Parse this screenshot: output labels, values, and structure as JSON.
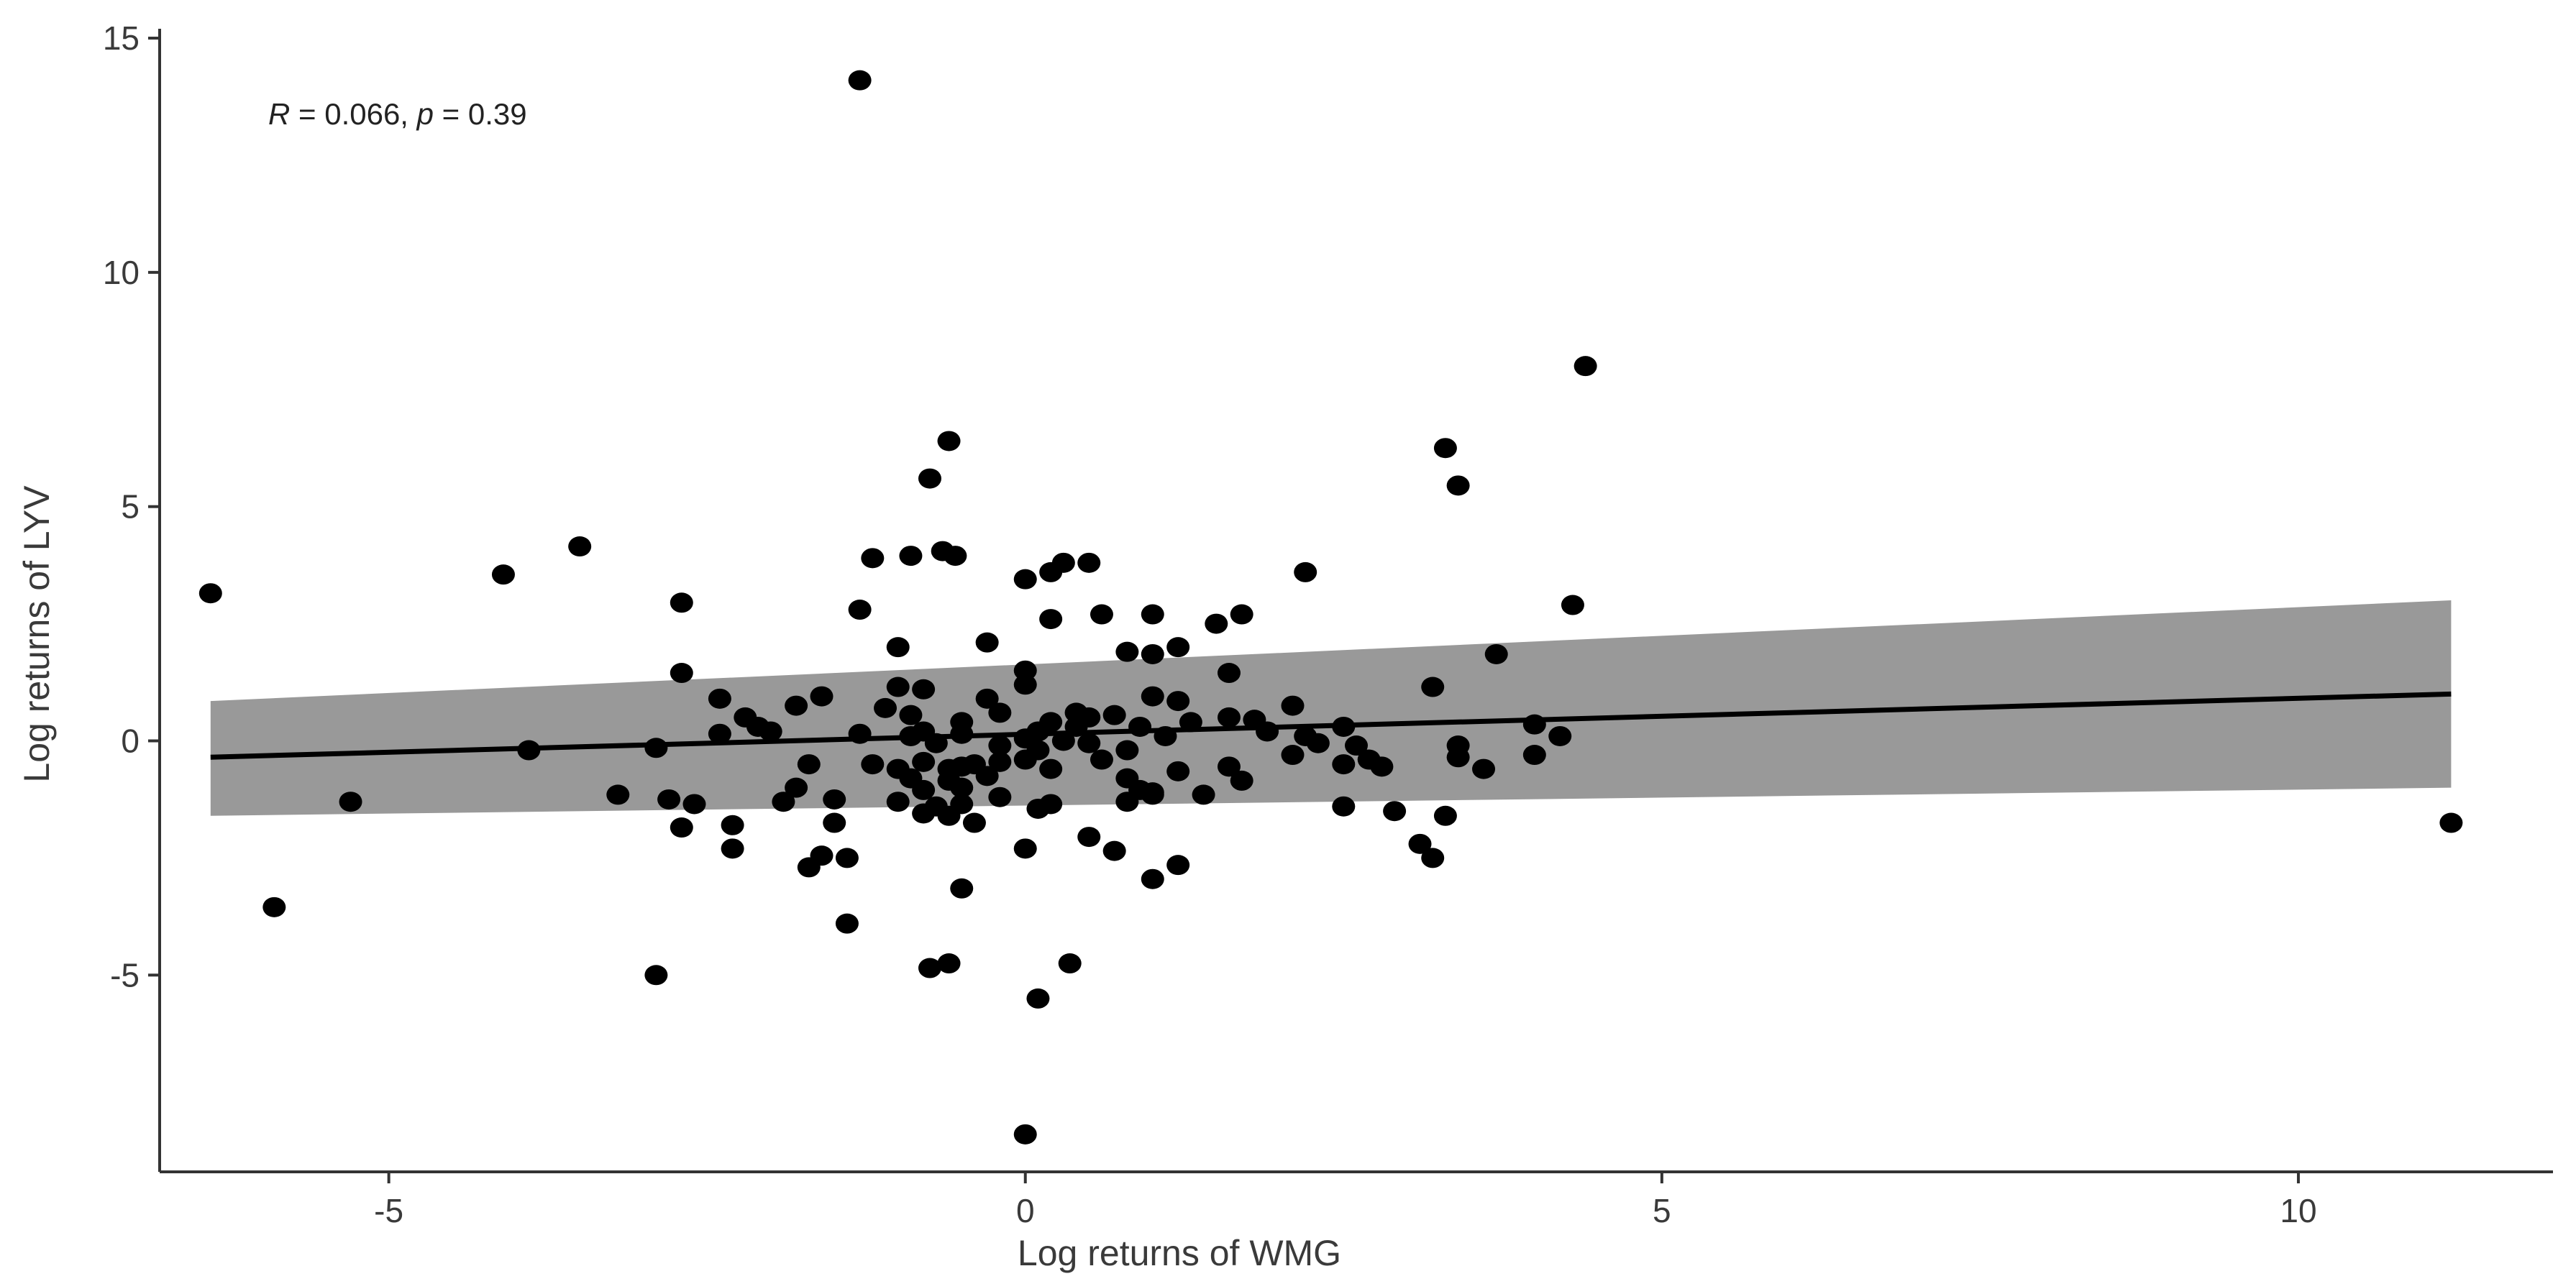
{
  "chart_data": {
    "type": "scatter",
    "title": "",
    "xlabel": "Log returns of WMG",
    "ylabel": "Log returns of LYV",
    "xlim": [
      -6.8,
      12.0
    ],
    "ylim": [
      -9.2,
      15.2
    ],
    "xticks": [
      -5,
      0,
      5,
      10
    ],
    "yticks": [
      -5,
      0,
      5,
      10,
      15
    ],
    "xtick_labels": [
      "-5",
      "0",
      "5",
      "10"
    ],
    "ytick_labels": [
      "-5",
      "0",
      "5",
      "10",
      "15"
    ],
    "grid": false,
    "annotation": {
      "r_label": "R",
      "r_text": " = 0.066, ",
      "p_label": "p",
      "p_text": " = 0.39"
    },
    "regression": {
      "x": [
        -6.4,
        11.2
      ],
      "y": [
        -0.35,
        1.0
      ],
      "ci_lower": [
        -1.6,
        -1.0
      ],
      "ci_upper": [
        0.85,
        3.0
      ]
    },
    "colors": {
      "points": "#000000",
      "line": "#000000",
      "band": "#999999",
      "axis": "#333333"
    },
    "points": [
      [
        -1.3,
        14.1
      ],
      [
        4.4,
        8.0
      ],
      [
        -0.6,
        6.4
      ],
      [
        3.3,
        6.25
      ],
      [
        -0.75,
        5.6
      ],
      [
        3.4,
        5.45
      ],
      [
        -3.5,
        4.15
      ],
      [
        -0.65,
        4.05
      ],
      [
        -0.55,
        3.95
      ],
      [
        -0.9,
        3.95
      ],
      [
        -1.2,
        3.9
      ],
      [
        0.3,
        3.8
      ],
      [
        0.5,
        3.8
      ],
      [
        0.2,
        3.6
      ],
      [
        -4.1,
        3.55
      ],
      [
        2.2,
        3.6
      ],
      [
        0.0,
        3.45
      ],
      [
        -6.4,
        3.15
      ],
      [
        -2.7,
        2.95
      ],
      [
        4.3,
        2.9
      ],
      [
        -1.3,
        2.8
      ],
      [
        0.6,
        2.7
      ],
      [
        1.0,
        2.7
      ],
      [
        1.7,
        2.7
      ],
      [
        0.2,
        2.6
      ],
      [
        1.5,
        2.5
      ],
      [
        -1.0,
        2.0
      ],
      [
        -0.3,
        2.1
      ],
      [
        1.2,
        2.0
      ],
      [
        0.8,
        1.9
      ],
      [
        1.0,
        1.85
      ],
      [
        3.7,
        1.85
      ],
      [
        -2.7,
        1.45
      ],
      [
        0.0,
        1.5
      ],
      [
        1.6,
        1.45
      ],
      [
        -1.0,
        1.15
      ],
      [
        -0.8,
        1.1
      ],
      [
        0.0,
        1.2
      ],
      [
        3.2,
        1.15
      ],
      [
        -1.6,
        0.95
      ],
      [
        -2.4,
        0.9
      ],
      [
        1.0,
        0.95
      ],
      [
        1.2,
        0.85
      ],
      [
        2.1,
        0.75
      ],
      [
        -1.8,
        0.75
      ],
      [
        -1.1,
        0.7
      ],
      [
        -0.9,
        0.55
      ],
      [
        -0.3,
        0.9
      ],
      [
        -0.2,
        0.6
      ],
      [
        0.4,
        0.6
      ],
      [
        0.5,
        0.5
      ],
      [
        0.7,
        0.55
      ],
      [
        -2.2,
        0.5
      ],
      [
        -0.5,
        0.4
      ],
      [
        0.2,
        0.4
      ],
      [
        1.6,
        0.5
      ],
      [
        1.8,
        0.45
      ],
      [
        2.5,
        0.3
      ],
      [
        4.0,
        0.35
      ],
      [
        -2.1,
        0.3
      ],
      [
        -2.0,
        0.2
      ],
      [
        -0.8,
        0.2
      ],
      [
        -0.5,
        0.15
      ],
      [
        0.1,
        0.2
      ],
      [
        0.4,
        0.3
      ],
      [
        0.9,
        0.3
      ],
      [
        1.3,
        0.4
      ],
      [
        1.9,
        0.2
      ],
      [
        2.2,
        0.1
      ],
      [
        4.2,
        0.1
      ],
      [
        -2.4,
        0.15
      ],
      [
        -1.3,
        0.15
      ],
      [
        -0.9,
        0.1
      ],
      [
        0.0,
        0.05
      ],
      [
        0.3,
        0.0
      ],
      [
        0.5,
        -0.05
      ],
      [
        1.1,
        0.1
      ],
      [
        2.3,
        -0.05
      ],
      [
        2.6,
        -0.1
      ],
      [
        3.4,
        -0.1
      ],
      [
        -3.9,
        -0.2
      ],
      [
        -2.9,
        -0.15
      ],
      [
        -0.7,
        -0.05
      ],
      [
        -0.2,
        -0.1
      ],
      [
        0.1,
        -0.2
      ],
      [
        0.8,
        -0.2
      ],
      [
        2.1,
        -0.3
      ],
      [
        2.7,
        -0.4
      ],
      [
        3.4,
        -0.35
      ],
      [
        4.0,
        -0.3
      ],
      [
        -1.7,
        -0.5
      ],
      [
        -1.2,
        -0.5
      ],
      [
        -1.0,
        -0.6
      ],
      [
        -0.8,
        -0.45
      ],
      [
        -0.6,
        -0.6
      ],
      [
        -0.5,
        -0.55
      ],
      [
        -0.4,
        -0.5
      ],
      [
        -0.2,
        -0.45
      ],
      [
        0.0,
        -0.4
      ],
      [
        0.2,
        -0.6
      ],
      [
        0.6,
        -0.4
      ],
      [
        1.2,
        -0.65
      ],
      [
        1.6,
        -0.55
      ],
      [
        2.5,
        -0.5
      ],
      [
        2.8,
        -0.55
      ],
      [
        3.6,
        -0.6
      ],
      [
        -0.9,
        -0.8
      ],
      [
        -0.6,
        -0.85
      ],
      [
        -0.3,
        -0.75
      ],
      [
        0.8,
        -0.8
      ],
      [
        1.7,
        -0.85
      ],
      [
        -1.8,
        -1.0
      ],
      [
        -0.8,
        -1.05
      ],
      [
        -0.5,
        -1.0
      ],
      [
        0.9,
        -1.05
      ],
      [
        1.0,
        -1.1
      ],
      [
        1.4,
        -1.15
      ],
      [
        -3.2,
        -1.15
      ],
      [
        -1.9,
        -1.3
      ],
      [
        -1.5,
        -1.25
      ],
      [
        -1.0,
        -1.3
      ],
      [
        -0.7,
        -1.4
      ],
      [
        -0.5,
        -1.35
      ],
      [
        0.1,
        -1.45
      ],
      [
        0.2,
        -1.35
      ],
      [
        0.8,
        -1.3
      ],
      [
        2.5,
        -1.4
      ],
      [
        2.9,
        -1.5
      ],
      [
        3.3,
        -1.6
      ],
      [
        -5.3,
        -1.3
      ],
      [
        -2.8,
        -1.25
      ],
      [
        -2.6,
        -1.35
      ],
      [
        -0.8,
        -1.55
      ],
      [
        -0.6,
        -1.6
      ],
      [
        -0.4,
        -1.75
      ],
      [
        -2.7,
        -1.85
      ],
      [
        -2.3,
        -1.8
      ],
      [
        -1.5,
        -1.75
      ],
      [
        1.0,
        -1.15
      ],
      [
        -0.2,
        -1.2
      ],
      [
        11.2,
        -1.75
      ],
      [
        3.1,
        -2.2
      ],
      [
        -1.6,
        -2.45
      ],
      [
        -1.4,
        -2.5
      ],
      [
        -2.3,
        -2.3
      ],
      [
        0.0,
        -2.3
      ],
      [
        0.5,
        -2.05
      ],
      [
        0.7,
        -2.35
      ],
      [
        3.2,
        -2.5
      ],
      [
        1.2,
        -2.65
      ],
      [
        -1.7,
        -2.7
      ],
      [
        1.0,
        -2.95
      ],
      [
        -0.5,
        -3.15
      ],
      [
        -5.9,
        -3.55
      ],
      [
        -1.4,
        -3.9
      ],
      [
        -0.6,
        -4.75
      ],
      [
        -0.75,
        -4.85
      ],
      [
        0.35,
        -4.75
      ],
      [
        -2.9,
        -5.0
      ],
      [
        0.1,
        -5.5
      ],
      [
        0.0,
        -8.4
      ]
    ]
  }
}
